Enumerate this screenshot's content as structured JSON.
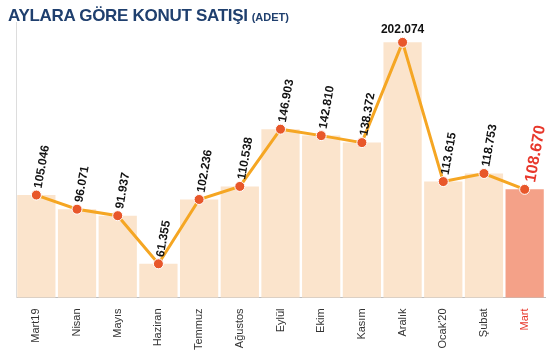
{
  "chart_data": {
    "type": "line",
    "title": "AYLARA GÖRE KONUT SATIŞI",
    "subtitle": "(ADET)",
    "categories": [
      "Mart19",
      "Nisan",
      "Mayıs",
      "Haziran",
      "Temmuz",
      "Ağustos",
      "Eylül",
      "Ekim",
      "Kasım",
      "Aralık",
      "Ocak'20",
      "Şubat",
      "Mart"
    ],
    "values": [
      105046,
      96071,
      91937,
      61355,
      102236,
      110538,
      146903,
      142810,
      138372,
      202074,
      113615,
      118753,
      108670
    ],
    "value_labels": [
      "105.046",
      "96.071",
      "91.937",
      "61.355",
      "102.236",
      "110.538",
      "146.903",
      "142.810",
      "138.372",
      "202.074",
      "113.615",
      "118.753",
      "108.670"
    ],
    "color": "#f5a623",
    "marker": "circle",
    "colors": [
      "#fbe4cc",
      "#fbe4cc",
      "#fbe4cc",
      "#fbe4cc",
      "#fbe4cc",
      "#fbe4cc",
      "#fbe4cc",
      "#fbe4cc",
      "#fbe4cc",
      "#fbe4cc",
      "#fbe4cc",
      "#fbe4cc",
      "#f4a188"
    ],
    "ylim": [
      40000,
      215000
    ],
    "grid": false,
    "data_labels": true,
    "tick_labels": "x"
  }
}
